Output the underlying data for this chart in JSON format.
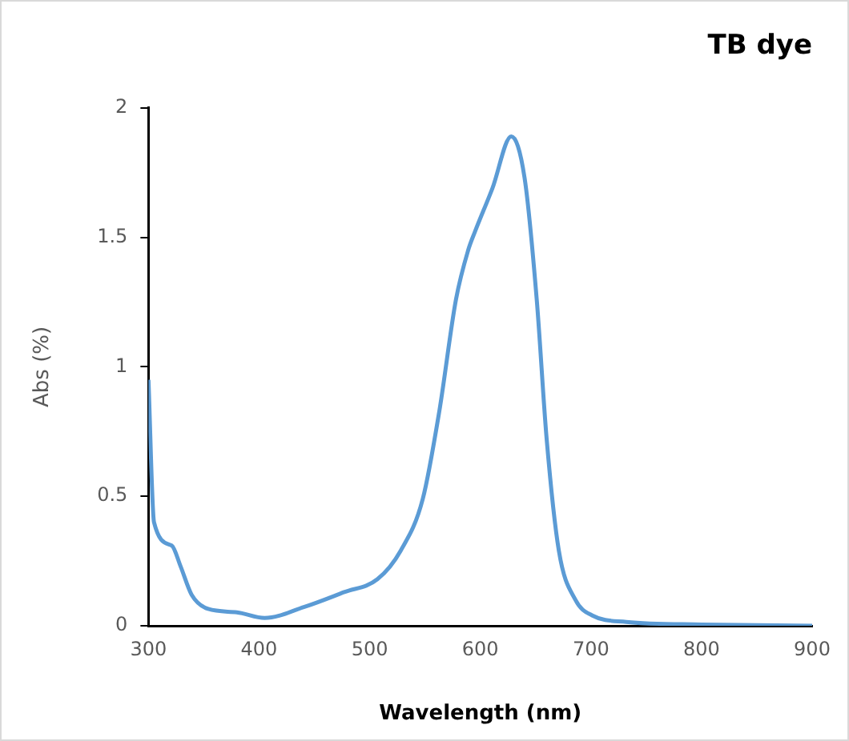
{
  "chart_data": {
    "type": "line",
    "title": "TB dye",
    "xlabel": "Wavelength (nm)",
    "ylabel": "Abs (%)",
    "series": [
      {
        "color": "#5b9bd5",
        "x": [
          300,
          305,
          321,
          329,
          339,
          354,
          380,
          405,
          441,
          477,
          507,
          528,
          548,
          563,
          578,
          589,
          595,
          611,
          628,
          640,
          651,
          660,
          671,
          686,
          701,
          732,
          800,
          900
        ],
        "values": [
          0.95,
          0.4,
          0.31,
          0.23,
          0.12,
          0.065,
          0.052,
          0.03,
          0.073,
          0.13,
          0.18,
          0.29,
          0.49,
          0.83,
          1.26,
          1.45,
          1.52,
          1.69,
          1.89,
          1.73,
          1.26,
          0.72,
          0.29,
          0.1,
          0.04,
          0.015,
          0.005,
          0
        ]
      }
    ],
    "xlim": [
      300,
      900
    ],
    "xticks": [
      300,
      400,
      500,
      600,
      700,
      800,
      900
    ],
    "ylim": [
      0,
      2
    ],
    "yticks": [
      0,
      0.5,
      1,
      1.5,
      2
    ],
    "grid": false,
    "legend": false
  }
}
